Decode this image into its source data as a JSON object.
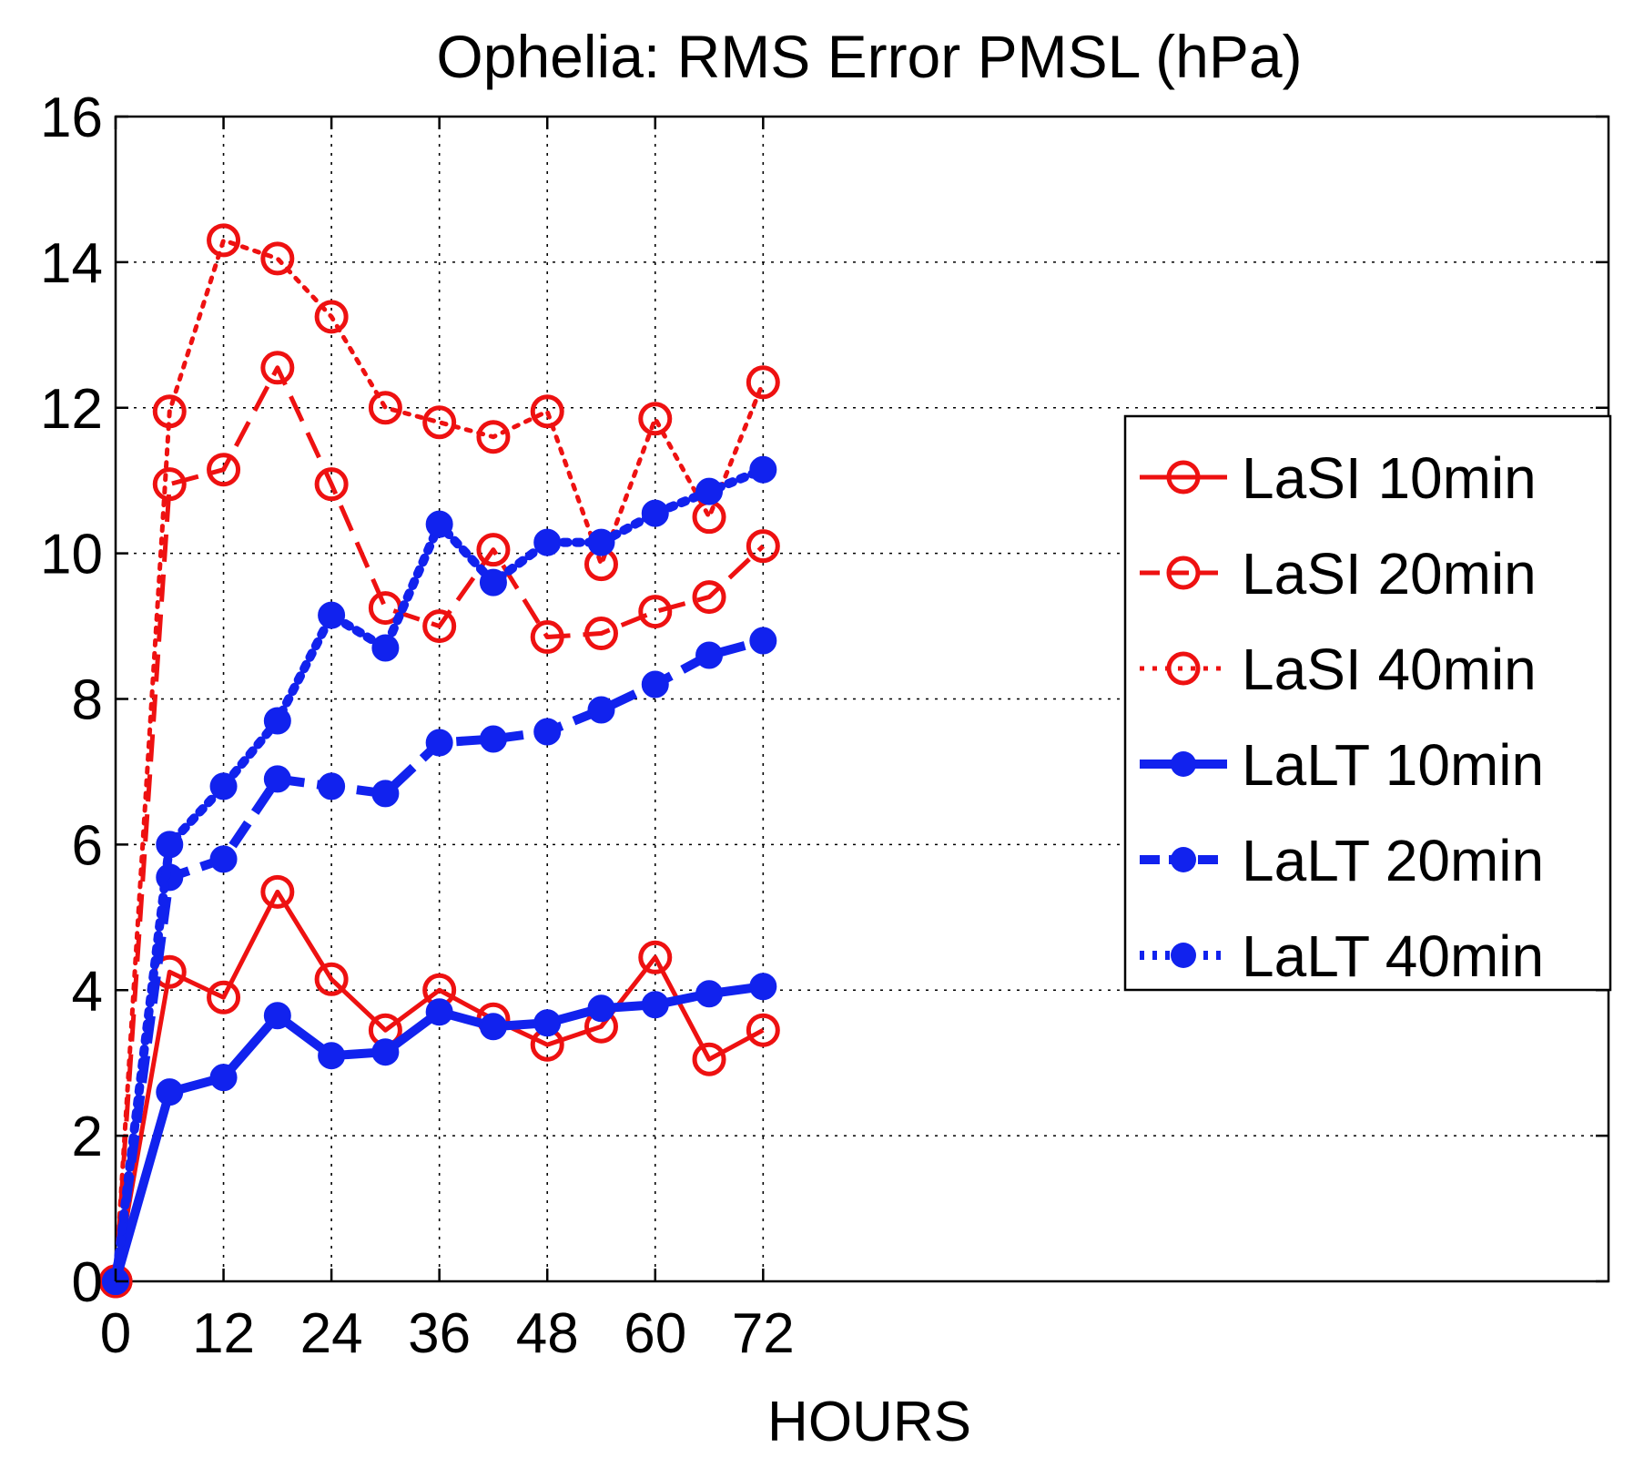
{
  "chart_data": {
    "type": "line",
    "title": "Ophelia: RMS Error PMSL (hPa)",
    "xlabel": "HOURS",
    "ylabel": "",
    "xlim": [
      0,
      166
    ],
    "ylim": [
      0,
      16
    ],
    "grid": true,
    "xticks": [
      0,
      12,
      24,
      36,
      48,
      60,
      72
    ],
    "yticks": [
      0,
      2,
      4,
      6,
      8,
      10,
      12,
      14,
      16
    ],
    "x": [
      0,
      6,
      12,
      18,
      24,
      30,
      36,
      42,
      48,
      54,
      60,
      66,
      72
    ],
    "legend_position": "right",
    "series": [
      {
        "name": "LaSI 10min",
        "color": "#ee1111",
        "line": "solid",
        "marker": "open-circle",
        "values": [
          0,
          4.25,
          3.9,
          5.35,
          4.15,
          3.45,
          4.0,
          3.6,
          3.25,
          3.5,
          4.45,
          3.05,
          3.45
        ]
      },
      {
        "name": "LaSI 20min",
        "color": "#ee1111",
        "line": "dashed",
        "marker": "open-circle",
        "values": [
          0,
          10.95,
          11.15,
          12.55,
          10.95,
          9.25,
          9.0,
          10.05,
          8.85,
          8.9,
          9.2,
          9.4,
          10.1
        ]
      },
      {
        "name": "LaSI 40min",
        "color": "#ee1111",
        "line": "dotted",
        "marker": "open-circle",
        "values": [
          0,
          11.95,
          14.3,
          14.05,
          13.25,
          12.0,
          11.8,
          11.6,
          11.95,
          9.85,
          11.85,
          10.5,
          12.35
        ]
      },
      {
        "name": "LaLT 10min",
        "color": "#1122ee",
        "line": "solid",
        "marker": "filled-circle",
        "values": [
          0,
          2.6,
          2.8,
          3.65,
          3.1,
          3.15,
          3.7,
          3.5,
          3.55,
          3.75,
          3.8,
          3.95,
          4.05
        ]
      },
      {
        "name": "LaLT 20min",
        "color": "#1122ee",
        "line": "dashed",
        "marker": "filled-circle",
        "values": [
          0,
          5.55,
          5.8,
          6.9,
          6.8,
          6.7,
          7.4,
          7.45,
          7.55,
          7.85,
          8.2,
          8.6,
          8.8
        ]
      },
      {
        "name": "LaLT 40min",
        "color": "#1122ee",
        "line": "dotted",
        "marker": "filled-circle",
        "values": [
          0,
          6.0,
          6.8,
          7.7,
          9.15,
          8.7,
          10.4,
          9.6,
          10.15,
          10.15,
          10.55,
          10.85,
          11.15
        ]
      }
    ]
  }
}
